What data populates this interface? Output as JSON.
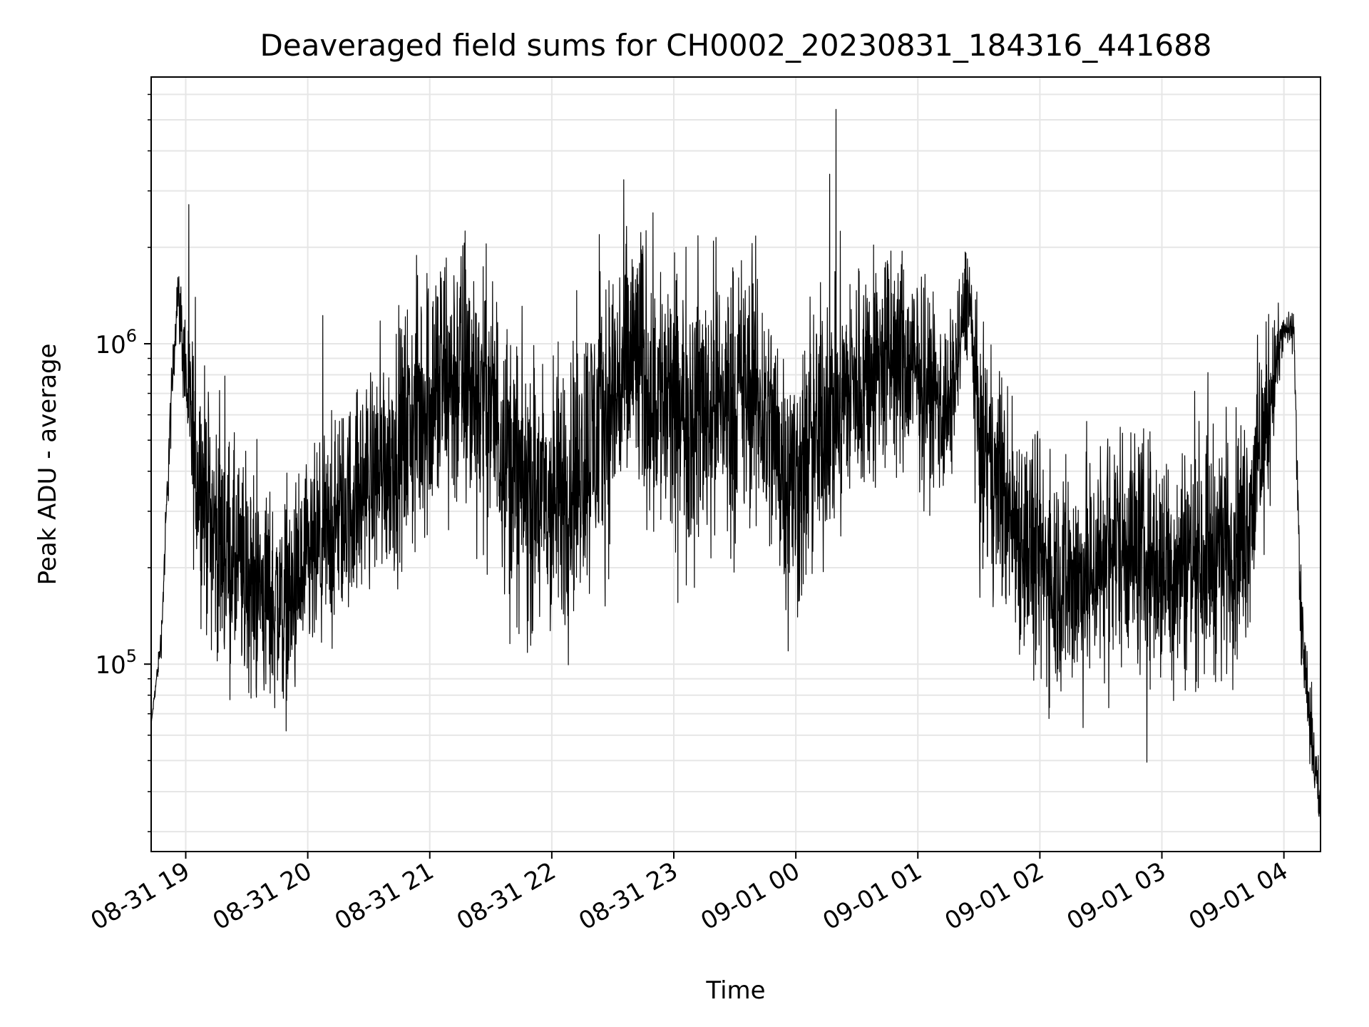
{
  "chart_data": {
    "type": "line",
    "title": "Deaveraged field sums for CH0002_20230831_184316_441688",
    "xlabel": "Time",
    "ylabel": "Peak ADU - average",
    "x_range": [
      "2023-08-31 18:43",
      "2023-09-01 04:18"
    ],
    "xticks": [
      "08-31 19",
      "08-31 20",
      "08-31 21",
      "08-31 22",
      "08-31 23",
      "09-01 00",
      "09-01 01",
      "09-01 02",
      "09-01 03",
      "09-01 04"
    ],
    "y_scale": "log",
    "ylim": [
      26000,
      6800000
    ],
    "yticks": [
      {
        "value": 100000,
        "base": "10",
        "exp": "5"
      },
      {
        "value": 1000000,
        "base": "10",
        "exp": "6"
      }
    ],
    "grid": true,
    "line_color": "#000000",
    "grid_color": "#e6e6e6",
    "series": [
      {
        "x": [
          "2023-08-31 18:43",
          "2023-08-31 18:48",
          "2023-08-31 18:52",
          "2023-08-31 18:56",
          "2023-08-31 19:00",
          "2023-08-31 19:04",
          "2023-08-31 19:15",
          "2023-08-31 19:30",
          "2023-08-31 19:50",
          "2023-08-31 20:10",
          "2023-08-31 20:30",
          "2023-08-31 20:45",
          "2023-08-31 21:00",
          "2023-08-31 21:15",
          "2023-08-31 21:30",
          "2023-08-31 21:45",
          "2023-08-31 22:00",
          "2023-08-31 22:20",
          "2023-08-31 22:40",
          "2023-08-31 23:00",
          "2023-08-31 23:20",
          "2023-08-31 23:40",
          "2023-09-01 00:00",
          "2023-09-01 00:15",
          "2023-09-01 00:30",
          "2023-09-01 00:45",
          "2023-09-01 01:00",
          "2023-09-01 01:15",
          "2023-09-01 01:25",
          "2023-09-01 01:30",
          "2023-09-01 01:45",
          "2023-09-01 02:00",
          "2023-09-01 02:20",
          "2023-09-01 02:40",
          "2023-09-01 03:00",
          "2023-09-01 03:20",
          "2023-09-01 03:40",
          "2023-09-01 03:50",
          "2023-09-01 03:55",
          "2023-09-01 04:00",
          "2023-09-01 04:05",
          "2023-09-01 04:08",
          "2023-09-01 04:12",
          "2023-09-01 04:18"
        ],
        "y": [
          65000,
          120000,
          500000,
          1500000,
          800000,
          450000,
          250000,
          180000,
          150000,
          250000,
          380000,
          480000,
          700000,
          800000,
          650000,
          350000,
          300000,
          500000,
          900000,
          600000,
          650000,
          700000,
          350000,
          600000,
          750000,
          900000,
          800000,
          600000,
          1500000,
          500000,
          300000,
          200000,
          180000,
          250000,
          200000,
          220000,
          250000,
          500000,
          800000,
          1100000,
          1100000,
          150000,
          70000,
          35000
        ],
        "spread": [
          1.0,
          1.2,
          1.5,
          1.3,
          2.0,
          3.2,
          3.5,
          3.2,
          3.0,
          3.0,
          3.0,
          3.5,
          4.5,
          4.5,
          4.0,
          4.2,
          4.5,
          4.5,
          4.5,
          4.5,
          4.5,
          4.0,
          4.0,
          4.0,
          3.5,
          3.5,
          3.0,
          2.5,
          1.8,
          3.0,
          3.5,
          3.5,
          3.5,
          3.5,
          3.5,
          3.5,
          3.5,
          3.0,
          2.0,
          1.2,
          1.2,
          1.8,
          1.5,
          1.3
        ]
      }
    ]
  }
}
